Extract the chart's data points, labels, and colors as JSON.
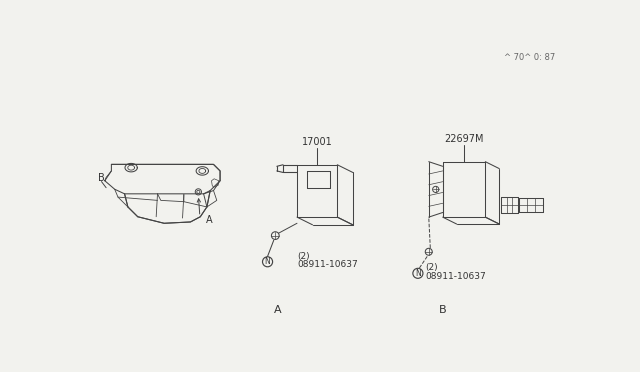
{
  "bg_color": "#f2f2ee",
  "line_color": "#444444",
  "text_color": "#333333",
  "label_A": "A",
  "label_B": "B",
  "part_number_bolt": "08911-10637\n（2）",
  "part_number_bolt_plain": "08911-10637\n(2)",
  "part_number_main_A": "17001",
  "part_number_main_B": "22697M",
  "footer_text": "^ 70^ 0: 87",
  "section_A_header": "A",
  "section_B_header": "B",
  "car_label_A": "A",
  "car_label_B": "B"
}
